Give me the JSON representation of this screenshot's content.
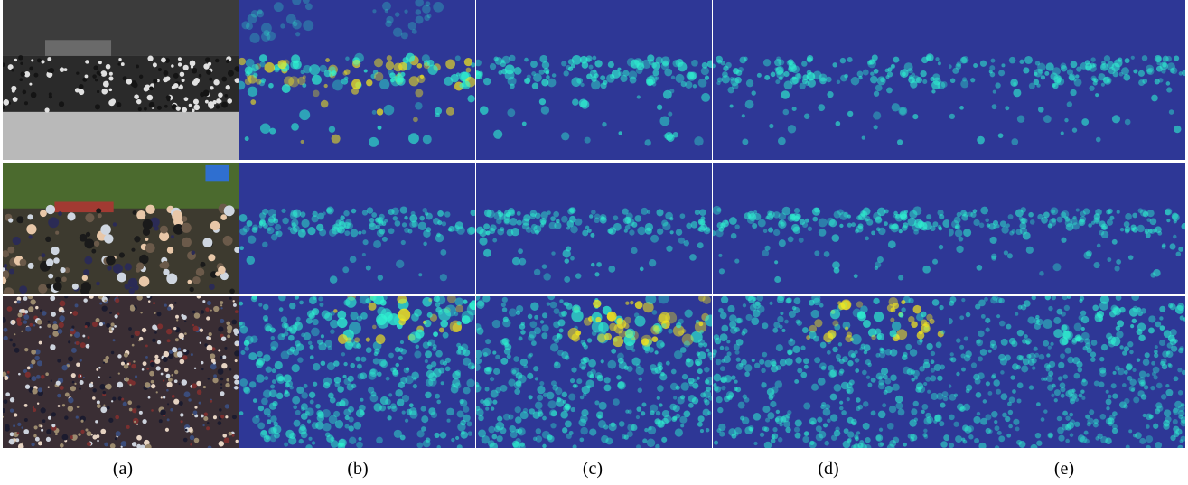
{
  "captions": [
    "(a)",
    "(b)",
    "(c)",
    "(d)",
    "(e)"
  ],
  "rows": [
    {
      "scene": "bw-crowd",
      "heat": [
        {
          "band": 0.82,
          "hot": 0.95,
          "top": 0.55
        },
        {
          "band": 0.7,
          "hot": 0.75,
          "top": 0.15
        },
        {
          "band": 0.6,
          "hot": 0.7,
          "top": 0.1
        },
        {
          "band": 0.55,
          "hot": 0.6,
          "top": 0.05
        }
      ]
    },
    {
      "scene": "street-crowd",
      "heat": [
        {
          "band": 0.55,
          "hot": 0.6,
          "top": 0.2
        },
        {
          "band": 0.55,
          "hot": 0.55,
          "top": 0.2
        },
        {
          "band": 0.6,
          "hot": 0.75,
          "top": 0.05
        },
        {
          "band": 0.5,
          "hot": 0.55,
          "top": 0.05
        }
      ]
    },
    {
      "scene": "dense-crowd",
      "heat": [
        {
          "band": 0.95,
          "hot": 1.0,
          "top": 0.0
        },
        {
          "band": 0.95,
          "hot": 0.95,
          "top": 0.0
        },
        {
          "band": 0.8,
          "hot": 0.8,
          "top": 0.0
        },
        {
          "band": 0.7,
          "hot": 0.7,
          "top": 0.0
        }
      ]
    }
  ],
  "colors": {
    "heat_base": "#2e3796",
    "heat_cool": "#1f6cff",
    "heat_mid": "#2ef2d0",
    "heat_warm": "#f2e51e",
    "heat_hot": "#e8201a"
  }
}
